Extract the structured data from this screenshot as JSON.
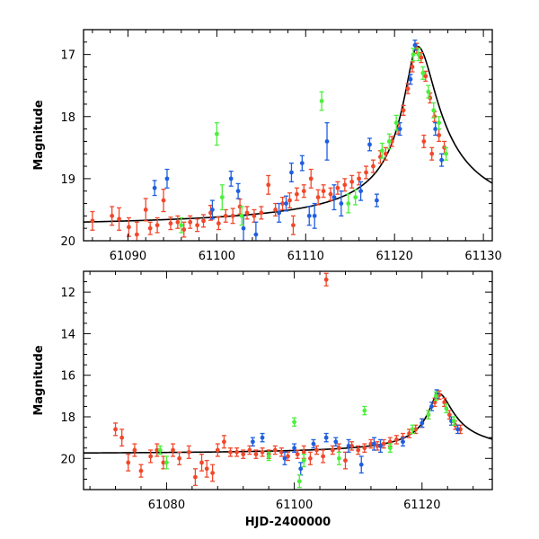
{
  "chart_data": [
    {
      "type": "scatter",
      "panel": "top",
      "title": "",
      "xlabel": "",
      "ylabel": "Magnitude",
      "xlim": [
        61085,
        61131
      ],
      "ylim": [
        20.0,
        16.6
      ],
      "y_inverted": true,
      "xticks": [
        61090,
        61100,
        61110,
        61120,
        61130
      ],
      "xtick_labels": [
        "61090",
        "61100",
        "61110",
        "61120",
        "61130"
      ],
      "yticks": [
        17,
        18,
        19,
        20
      ],
      "ytick_labels": [
        "17",
        "18",
        "19",
        "20"
      ],
      "series": [
        {
          "name": "red",
          "color": "#f2472a",
          "points": [
            [
              61086.0,
              19.68,
              0.15
            ],
            [
              61088.2,
              19.6,
              0.15
            ],
            [
              61089.0,
              19.65,
              0.18
            ],
            [
              61090.1,
              19.78,
              0.15
            ],
            [
              61091.0,
              19.9,
              0.2
            ],
            [
              61092.0,
              19.5,
              0.18
            ],
            [
              61092.5,
              19.8,
              0.1
            ],
            [
              61093.3,
              19.75,
              0.12
            ],
            [
              61094.0,
              19.35,
              0.18
            ],
            [
              61094.8,
              19.72,
              0.1
            ],
            [
              61095.6,
              19.7,
              0.1
            ],
            [
              61096.3,
              19.82,
              0.12
            ],
            [
              61097.0,
              19.7,
              0.1
            ],
            [
              61097.8,
              19.75,
              0.1
            ],
            [
              61098.5,
              19.68,
              0.1
            ],
            [
              61099.3,
              19.55,
              0.12
            ],
            [
              61100.2,
              19.72,
              0.1
            ],
            [
              61101.0,
              19.6,
              0.1
            ],
            [
              61101.8,
              19.6,
              0.12
            ],
            [
              61102.6,
              19.45,
              0.12
            ],
            [
              61103.4,
              19.55,
              0.1
            ],
            [
              61104.2,
              19.6,
              0.1
            ],
            [
              61105.0,
              19.55,
              0.1
            ],
            [
              61105.8,
              19.1,
              0.15
            ],
            [
              61106.6,
              19.5,
              0.1
            ],
            [
              61107.4,
              19.4,
              0.1
            ],
            [
              61108.2,
              19.35,
              0.12
            ],
            [
              61108.6,
              19.75,
              0.15
            ],
            [
              61109.0,
              19.25,
              0.1
            ],
            [
              61109.8,
              19.2,
              0.1
            ],
            [
              61110.6,
              19.0,
              0.15
            ],
            [
              61111.4,
              19.3,
              0.12
            ],
            [
              61112.0,
              19.2,
              0.1
            ],
            [
              61112.8,
              19.25,
              0.1
            ],
            [
              61113.6,
              19.15,
              0.1
            ],
            [
              61114.4,
              19.1,
              0.1
            ],
            [
              61115.2,
              19.05,
              0.1
            ],
            [
              61116.0,
              19.0,
              0.1
            ],
            [
              61116.8,
              18.9,
              0.1
            ],
            [
              61117.6,
              18.8,
              0.1
            ],
            [
              61118.4,
              18.65,
              0.1
            ],
            [
              61119.0,
              18.6,
              0.1
            ],
            [
              61119.7,
              18.4,
              0.08
            ],
            [
              61120.4,
              18.2,
              0.08
            ],
            [
              61121.0,
              17.9,
              0.08
            ],
            [
              61121.5,
              17.55,
              0.08
            ],
            [
              61122.0,
              17.2,
              0.08
            ],
            [
              61122.5,
              16.9,
              0.08
            ],
            [
              61123.0,
              17.05,
              0.08
            ],
            [
              61123.5,
              17.35,
              0.08
            ],
            [
              61124.0,
              17.7,
              0.08
            ],
            [
              61124.5,
              18.0,
              0.08
            ],
            [
              61125.0,
              18.3,
              0.1
            ],
            [
              61125.6,
              18.5,
              0.1
            ],
            [
              61123.3,
              18.4,
              0.1
            ],
            [
              61124.2,
              18.6,
              0.1
            ]
          ]
        },
        {
          "name": "blue",
          "color": "#1f5fe0",
          "points": [
            [
              61093.0,
              19.15,
              0.12
            ],
            [
              61094.4,
              19.0,
              0.15
            ],
            [
              61099.5,
              19.5,
              0.15
            ],
            [
              61101.6,
              19.0,
              0.12
            ],
            [
              61102.4,
              19.2,
              0.12
            ],
            [
              61103.0,
              19.8,
              0.2
            ],
            [
              61104.4,
              19.9,
              0.2
            ],
            [
              61107.0,
              19.55,
              0.15
            ],
            [
              61107.8,
              19.4,
              0.12
            ],
            [
              61108.4,
              18.9,
              0.15
            ],
            [
              61109.6,
              18.75,
              0.12
            ],
            [
              61110.4,
              19.6,
              0.15
            ],
            [
              61111.0,
              19.6,
              0.2
            ],
            [
              61112.4,
              18.4,
              0.3
            ],
            [
              61113.2,
              19.3,
              0.2
            ],
            [
              61114.0,
              19.4,
              0.2
            ],
            [
              61116.2,
              19.2,
              0.15
            ],
            [
              61117.2,
              18.45,
              0.1
            ],
            [
              61118.0,
              19.35,
              0.1
            ],
            [
              61120.6,
              18.2,
              0.1
            ],
            [
              61121.8,
              17.4,
              0.08
            ],
            [
              61122.3,
              16.85,
              0.08
            ],
            [
              61124.6,
              18.2,
              0.1
            ],
            [
              61125.3,
              18.7,
              0.1
            ]
          ]
        },
        {
          "name": "green",
          "color": "#4cf03c",
          "points": [
            [
              61096.0,
              19.75,
              0.12
            ],
            [
              61100.0,
              18.28,
              0.18
            ],
            [
              61100.6,
              19.3,
              0.2
            ],
            [
              61102.8,
              19.6,
              0.15
            ],
            [
              61111.8,
              17.75,
              0.15
            ],
            [
              61114.8,
              19.4,
              0.15
            ],
            [
              61115.6,
              19.3,
              0.12
            ],
            [
              61118.6,
              18.55,
              0.12
            ],
            [
              61119.4,
              18.4,
              0.12
            ],
            [
              61120.2,
              18.1,
              0.12
            ],
            [
              61122.1,
              17.0,
              0.1
            ],
            [
              61122.7,
              17.0,
              0.1
            ],
            [
              61123.2,
              17.3,
              0.1
            ],
            [
              61123.8,
              17.6,
              0.1
            ],
            [
              61124.4,
              17.9,
              0.12
            ],
            [
              61125.0,
              18.1,
              0.1
            ],
            [
              61125.8,
              18.6,
              0.1
            ]
          ]
        }
      ]
    },
    {
      "type": "scatter",
      "panel": "bottom",
      "title": "",
      "xlabel": "HJD-2400000",
      "ylabel": "Magnitude",
      "xlim": [
        61067,
        61131
      ],
      "ylim": [
        21.5,
        11.0
      ],
      "y_inverted": true,
      "xticks": [
        61080,
        61100,
        61120
      ],
      "xtick_labels": [
        "61080",
        "61100",
        "61120"
      ],
      "yticks": [
        12,
        14,
        16,
        18,
        20
      ],
      "ytick_labels": [
        "12",
        "14",
        "16",
        "18",
        "20"
      ],
      "series": [
        {
          "name": "red",
          "color": "#f2472a",
          "points": [
            [
              61072.0,
              18.6,
              0.3
            ],
            [
              61073.0,
              19.0,
              0.4
            ],
            [
              61074.0,
              20.2,
              0.4
            ],
            [
              61075.0,
              19.6,
              0.3
            ],
            [
              61076.0,
              20.6,
              0.3
            ],
            [
              61077.5,
              19.9,
              0.3
            ],
            [
              61078.5,
              19.6,
              0.3
            ],
            [
              61079.5,
              20.2,
              0.3
            ],
            [
              61081.0,
              19.6,
              0.3
            ],
            [
              61082.0,
              20.0,
              0.3
            ],
            [
              61083.5,
              19.7,
              0.3
            ],
            [
              61084.5,
              20.9,
              0.4
            ],
            [
              61085.5,
              20.2,
              0.4
            ],
            [
              61086.3,
              20.5,
              0.4
            ],
            [
              61087.2,
              20.7,
              0.4
            ],
            [
              61088.0,
              19.6,
              0.3
            ],
            [
              61089.0,
              19.2,
              0.3
            ],
            [
              61090.0,
              19.7,
              0.2
            ],
            [
              61091.0,
              19.7,
              0.2
            ],
            [
              61092.0,
              19.8,
              0.2
            ],
            [
              61093.0,
              19.6,
              0.2
            ],
            [
              61094.0,
              19.8,
              0.2
            ],
            [
              61095.0,
              19.7,
              0.2
            ],
            [
              61096.0,
              19.8,
              0.2
            ],
            [
              61097.0,
              19.6,
              0.2
            ],
            [
              61098.0,
              19.7,
              0.2
            ],
            [
              61099.0,
              19.9,
              0.2
            ],
            [
              61100.5,
              19.8,
              0.2
            ],
            [
              61101.5,
              19.7,
              0.3
            ],
            [
              61102.5,
              20.0,
              0.3
            ],
            [
              61103.5,
              19.6,
              0.2
            ],
            [
              61104.5,
              19.9,
              0.3
            ],
            [
              61105.0,
              11.4,
              0.3
            ],
            [
              61106.0,
              19.6,
              0.2
            ],
            [
              61107.0,
              19.5,
              0.2
            ],
            [
              61108.0,
              20.1,
              0.4
            ],
            [
              61109.0,
              19.4,
              0.2
            ],
            [
              61110.0,
              19.6,
              0.2
            ],
            [
              61111.0,
              19.5,
              0.2
            ],
            [
              61112.0,
              19.3,
              0.2
            ],
            [
              61113.0,
              19.4,
              0.2
            ],
            [
              61114.0,
              19.3,
              0.2
            ],
            [
              61115.0,
              19.2,
              0.2
            ],
            [
              61116.0,
              19.1,
              0.2
            ],
            [
              61117.0,
              19.0,
              0.2
            ],
            [
              61118.0,
              18.8,
              0.2
            ],
            [
              61119.0,
              18.6,
              0.2
            ],
            [
              61120.0,
              18.3,
              0.2
            ],
            [
              61121.0,
              17.9,
              0.2
            ],
            [
              61122.0,
              17.3,
              0.2
            ],
            [
              61122.7,
              16.95,
              0.2
            ],
            [
              61123.5,
              17.3,
              0.2
            ],
            [
              61124.3,
              17.9,
              0.2
            ],
            [
              61125.2,
              18.4,
              0.2
            ],
            [
              61126.0,
              18.6,
              0.2
            ]
          ]
        },
        {
          "name": "blue",
          "color": "#1f5fe0",
          "points": [
            [
              61093.5,
              19.2,
              0.2
            ],
            [
              61095.0,
              19.0,
              0.2
            ],
            [
              61098.5,
              20.0,
              0.3
            ],
            [
              61100.0,
              19.5,
              0.2
            ],
            [
              61101.0,
              20.5,
              0.3
            ],
            [
              61103.0,
              19.3,
              0.2
            ],
            [
              61105.0,
              19.0,
              0.2
            ],
            [
              61106.5,
              19.2,
              0.2
            ],
            [
              61108.5,
              19.4,
              0.3
            ],
            [
              61110.5,
              20.3,
              0.4
            ],
            [
              61112.5,
              19.3,
              0.3
            ],
            [
              61113.5,
              19.4,
              0.3
            ],
            [
              61117.0,
              19.2,
              0.2
            ],
            [
              61120.0,
              18.3,
              0.2
            ],
            [
              61121.5,
              17.5,
              0.2
            ],
            [
              61122.3,
              16.9,
              0.2
            ],
            [
              61124.6,
              18.2,
              0.2
            ],
            [
              61125.6,
              18.6,
              0.2
            ]
          ]
        },
        {
          "name": "green",
          "color": "#4cf03c",
          "points": [
            [
              61079.0,
              19.6,
              0.2
            ],
            [
              61080.0,
              20.2,
              0.3
            ],
            [
              61096.0,
              19.9,
              0.2
            ],
            [
              61100.0,
              18.25,
              0.2
            ],
            [
              61100.8,
              21.1,
              0.3
            ],
            [
              61101.5,
              20.1,
              0.3
            ],
            [
              61107.0,
              20.0,
              0.3
            ],
            [
              61111.0,
              17.7,
              0.2
            ],
            [
              61115.0,
              19.5,
              0.2
            ],
            [
              61118.5,
              18.6,
              0.2
            ],
            [
              61121.0,
              17.9,
              0.2
            ],
            [
              61122.2,
              17.0,
              0.2
            ],
            [
              61123.8,
              17.6,
              0.2
            ],
            [
              61125.0,
              18.2,
              0.2
            ]
          ]
        }
      ]
    }
  ]
}
